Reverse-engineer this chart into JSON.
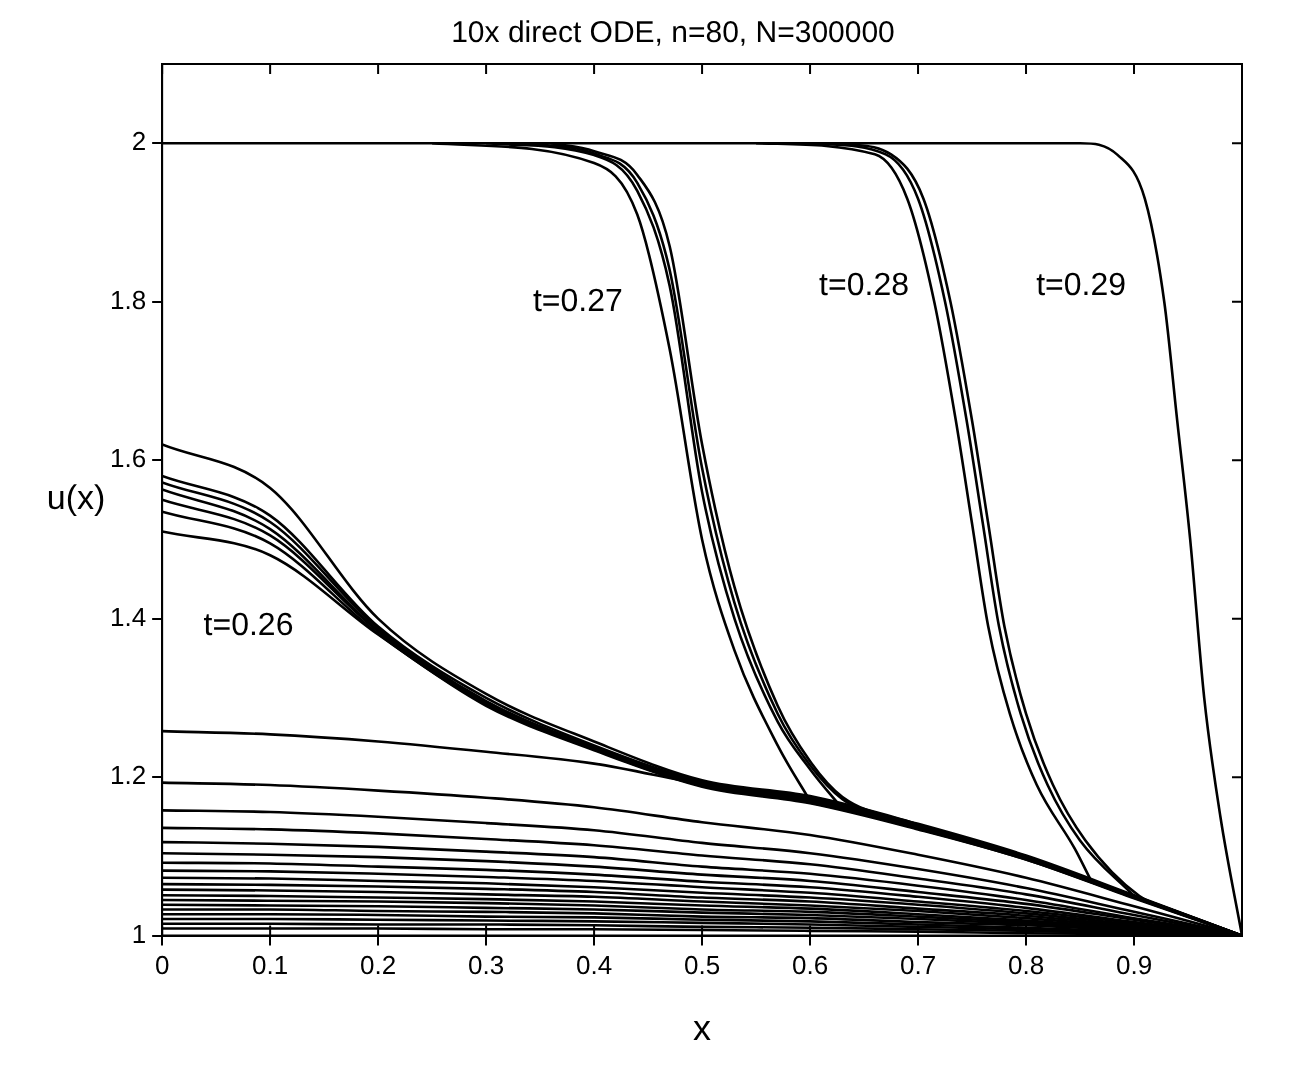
{
  "chart_data": {
    "type": "line",
    "title": "10x direct ODE, n=80, N=300000",
    "xlabel": "x",
    "ylabel": "u(x)",
    "x": [
      0,
      0.1,
      0.2,
      0.3,
      0.4,
      0.5,
      0.6,
      0.7,
      0.8,
      0.9,
      1
    ],
    "xlim": [
      0,
      1
    ],
    "xticks": [
      0,
      0.1,
      0.2,
      0.3,
      0.4,
      0.5,
      0.6,
      0.7,
      0.8,
      0.9
    ],
    "ylim": [
      1,
      2.1
    ],
    "yticks": [
      1,
      1.2,
      1.4,
      1.6,
      1.8,
      2
    ],
    "marker": "none",
    "legend": false,
    "annotations": [
      "t=0.26",
      "t=0.27",
      "t=0.28",
      "t=0.29"
    ],
    "series": [
      {
        "color": "#000000",
        "values": [
          1.258,
          1.254,
          1.245,
          1.232,
          1.217,
          1.191,
          1.17,
          1.137,
          1.098,
          1.049,
          1
        ]
      },
      {
        "color": "#000000",
        "values": [
          1.193,
          1.19,
          1.183,
          1.174,
          1.162,
          1.143,
          1.127,
          1.102,
          1.073,
          1.037,
          1
        ]
      },
      {
        "color": "#000000",
        "values": [
          1.158,
          1.156,
          1.15,
          1.142,
          1.133,
          1.117,
          1.104,
          1.084,
          1.06,
          1.03,
          1
        ]
      },
      {
        "color": "#000000",
        "values": [
          1.136,
          1.134,
          1.129,
          1.122,
          1.114,
          1.101,
          1.09,
          1.072,
          1.052,
          1.026,
          1
        ]
      },
      {
        "color": "#000000",
        "values": [
          1.118,
          1.116,
          1.112,
          1.106,
          1.099,
          1.087,
          1.078,
          1.063,
          1.045,
          1.022,
          1
        ]
      },
      {
        "color": "#000000",
        "values": [
          1.104,
          1.102,
          1.099,
          1.094,
          1.087,
          1.077,
          1.069,
          1.055,
          1.04,
          1.02,
          1
        ]
      },
      {
        "color": "#000000",
        "values": [
          1.092,
          1.091,
          1.087,
          1.083,
          1.077,
          1.068,
          1.061,
          1.049,
          1.035,
          1.017,
          1
        ]
      },
      {
        "color": "#000000",
        "values": [
          1.082,
          1.081,
          1.078,
          1.074,
          1.069,
          1.061,
          1.054,
          1.043,
          1.031,
          1.016,
          1
        ]
      },
      {
        "color": "#000000",
        "values": [
          1.073,
          1.072,
          1.069,
          1.066,
          1.061,
          1.054,
          1.048,
          1.039,
          1.028,
          1.014,
          1
        ]
      },
      {
        "color": "#000000",
        "values": [
          1.065,
          1.064,
          1.062,
          1.059,
          1.055,
          1.048,
          1.043,
          1.034,
          1.025,
          1.012,
          1
        ]
      },
      {
        "color": "#000000",
        "values": [
          1.058,
          1.057,
          1.055,
          1.052,
          1.049,
          1.043,
          1.038,
          1.031,
          1.022,
          1.011,
          1
        ]
      },
      {
        "color": "#000000",
        "values": [
          1.051,
          1.05,
          1.048,
          1.046,
          1.043,
          1.038,
          1.034,
          1.027,
          1.019,
          1.01,
          1
        ]
      },
      {
        "color": "#000000",
        "values": [
          1.045,
          1.044,
          1.043,
          1.041,
          1.038,
          1.033,
          1.03,
          1.024,
          1.017,
          1.009,
          1
        ]
      },
      {
        "color": "#000000",
        "values": [
          1.039,
          1.038,
          1.037,
          1.035,
          1.033,
          1.029,
          1.026,
          1.021,
          1.015,
          1.007,
          1
        ]
      },
      {
        "color": "#000000",
        "values": [
          1.033,
          1.033,
          1.031,
          1.03,
          1.028,
          1.024,
          1.022,
          1.017,
          1.013,
          1.006,
          1
        ]
      },
      {
        "color": "#000000",
        "values": [
          1.027,
          1.027,
          1.026,
          1.024,
          1.023,
          1.02,
          1.018,
          1.014,
          1.01,
          1.005,
          1
        ]
      },
      {
        "color": "#000000",
        "values": [
          1.021,
          1.021,
          1.02,
          1.019,
          1.018,
          1.016,
          1.014,
          1.011,
          1.008,
          1.004,
          1
        ]
      },
      {
        "color": "#000000",
        "values": [
          1.015,
          1.015,
          1.014,
          1.014,
          1.013,
          1.011,
          1.01,
          1.008,
          1.006,
          1.003,
          1
        ]
      },
      {
        "color": "#000000",
        "values": [
          1.009,
          1.009,
          1.009,
          1.008,
          1.008,
          1.007,
          1.006,
          1.005,
          1.003,
          1.002,
          1
        ]
      },
      {
        "color": "#000000",
        "values": [
          1.62,
          1.565,
          1.4,
          1.305,
          1.245,
          1.196,
          1.176,
          1.141,
          1.101,
          1.051,
          1
        ]
      },
      {
        "color": "#000000",
        "values": [
          1.58,
          1.53,
          1.39,
          1.3,
          1.24,
          1.194,
          1.174,
          1.14,
          1.1,
          1.05,
          1
        ]
      },
      {
        "color": "#000000",
        "values": [
          1.572,
          1.522,
          1.388,
          1.296,
          1.238,
          1.193,
          1.172,
          1.139,
          1.099,
          1.05,
          1
        ]
      },
      {
        "color": "#000000",
        "values": [
          1.563,
          1.513,
          1.385,
          1.295,
          1.237,
          1.192,
          1.171,
          1.138,
          1.099,
          1.05,
          1
        ]
      },
      {
        "color": "#000000",
        "values": [
          1.55,
          1.505,
          1.384,
          1.293,
          1.236,
          1.19,
          1.169,
          1.136,
          1.097,
          1.048,
          1
        ]
      },
      {
        "color": "#000000",
        "values": [
          1.535,
          1.495,
          1.381,
          1.292,
          1.235,
          1.189,
          1.168,
          1.135,
          1.096,
          1.048,
          1
        ]
      },
      {
        "color": "#000000",
        "values": [
          1.51,
          1.48,
          1.38,
          1.29,
          1.234,
          1.188,
          1.167,
          1.134,
          1.096,
          1.047,
          1
        ]
      },
      {
        "color": "#000000",
        "x": [
          0.25,
          0.4,
          0.44,
          0.47,
          0.5,
          0.53,
          0.57,
          0.6
        ],
        "values": [
          2,
          1.975,
          1.91,
          1.74,
          1.5,
          1.36,
          1.24,
          1.17
        ]
      },
      {
        "color": "#000000",
        "x": [
          0.3,
          0.4,
          0.44,
          0.47,
          0.5,
          0.53,
          0.57,
          0.6,
          0.63
        ],
        "values": [
          2,
          1.985,
          1.94,
          1.82,
          1.56,
          1.4,
          1.27,
          1.21,
          1.16
        ]
      },
      {
        "color": "#000000",
        "x": [
          0.33,
          0.4,
          0.44,
          0.47,
          0.5,
          0.53,
          0.57,
          0.6,
          0.63,
          0.66
        ],
        "values": [
          2,
          1.987,
          1.95,
          1.84,
          1.59,
          1.42,
          1.28,
          1.215,
          1.172,
          1.152
        ]
      },
      {
        "color": "#000000",
        "x": [
          0.36,
          0.4,
          0.44,
          0.47,
          0.5,
          0.53,
          0.57,
          0.6,
          0.63,
          0.7
        ],
        "values": [
          2,
          1.99,
          1.96,
          1.87,
          1.62,
          1.44,
          1.29,
          1.22,
          1.175,
          1.14
        ]
      },
      {
        "color": "#000000",
        "x": [
          0.55,
          0.66,
          0.69,
          0.715,
          0.735,
          0.75,
          0.765,
          0.785,
          0.81,
          0.845,
          0.86
        ],
        "values": [
          2,
          1.986,
          1.93,
          1.8,
          1.65,
          1.52,
          1.39,
          1.28,
          1.19,
          1.11,
          1.07
        ]
      },
      {
        "color": "#000000",
        "x": [
          0.6,
          0.67,
          0.7,
          0.725,
          0.745,
          0.76,
          0.775,
          0.795,
          0.82,
          0.85,
          0.9
        ],
        "values": [
          2,
          1.986,
          1.93,
          1.8,
          1.65,
          1.52,
          1.39,
          1.28,
          1.19,
          1.12,
          1.05
        ]
      },
      {
        "color": "#000000",
        "x": [
          0.63,
          0.675,
          0.705,
          0.73,
          0.75,
          0.765,
          0.78,
          0.8,
          0.825,
          0.855,
          0.905,
          0.94
        ],
        "values": [
          2,
          1.986,
          1.93,
          1.8,
          1.65,
          1.52,
          1.39,
          1.28,
          1.19,
          1.12,
          1.05,
          1.03
        ]
      },
      {
        "color": "#000000",
        "x": [
          0,
          0.85,
          0.885,
          0.91,
          0.928,
          0.94,
          0.952,
          0.965,
          0.98,
          1
        ],
        "values": [
          2,
          2,
          1.985,
          1.93,
          1.8,
          1.65,
          1.5,
          1.3,
          1.15,
          1
        ]
      }
    ]
  }
}
